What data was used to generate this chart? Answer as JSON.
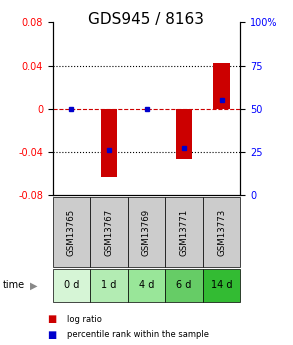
{
  "title": "GDS945 / 8163",
  "samples": [
    "GSM13765",
    "GSM13767",
    "GSM13769",
    "GSM13771",
    "GSM13773"
  ],
  "time_labels": [
    "0 d",
    "1 d",
    "4 d",
    "6 d",
    "14 d"
  ],
  "log_ratios": [
    0.0,
    -0.063,
    0.0,
    -0.047,
    0.042
  ],
  "percentile_ranks": [
    50.0,
    26.0,
    50.0,
    27.0,
    55.0
  ],
  "ylim_left": [
    -0.08,
    0.08
  ],
  "ylim_right": [
    0,
    100
  ],
  "left_yticks": [
    -0.08,
    -0.04,
    0,
    0.04,
    0.08
  ],
  "right_yticks": [
    0,
    25,
    50,
    75,
    100
  ],
  "bar_color": "#cc0000",
  "dot_color": "#0000cc",
  "zero_line_color": "#cc0000",
  "grid_color": "#000000",
  "title_fontsize": 11,
  "tick_fontsize": 7,
  "legend_fontsize": 6.5,
  "time_label_colors": [
    "#d6f5d6",
    "#b3ecb3",
    "#99e699",
    "#66cc66",
    "#33bb33"
  ],
  "sample_bg_color": "#cccccc",
  "bar_width": 0.45,
  "background_color": "#ffffff"
}
